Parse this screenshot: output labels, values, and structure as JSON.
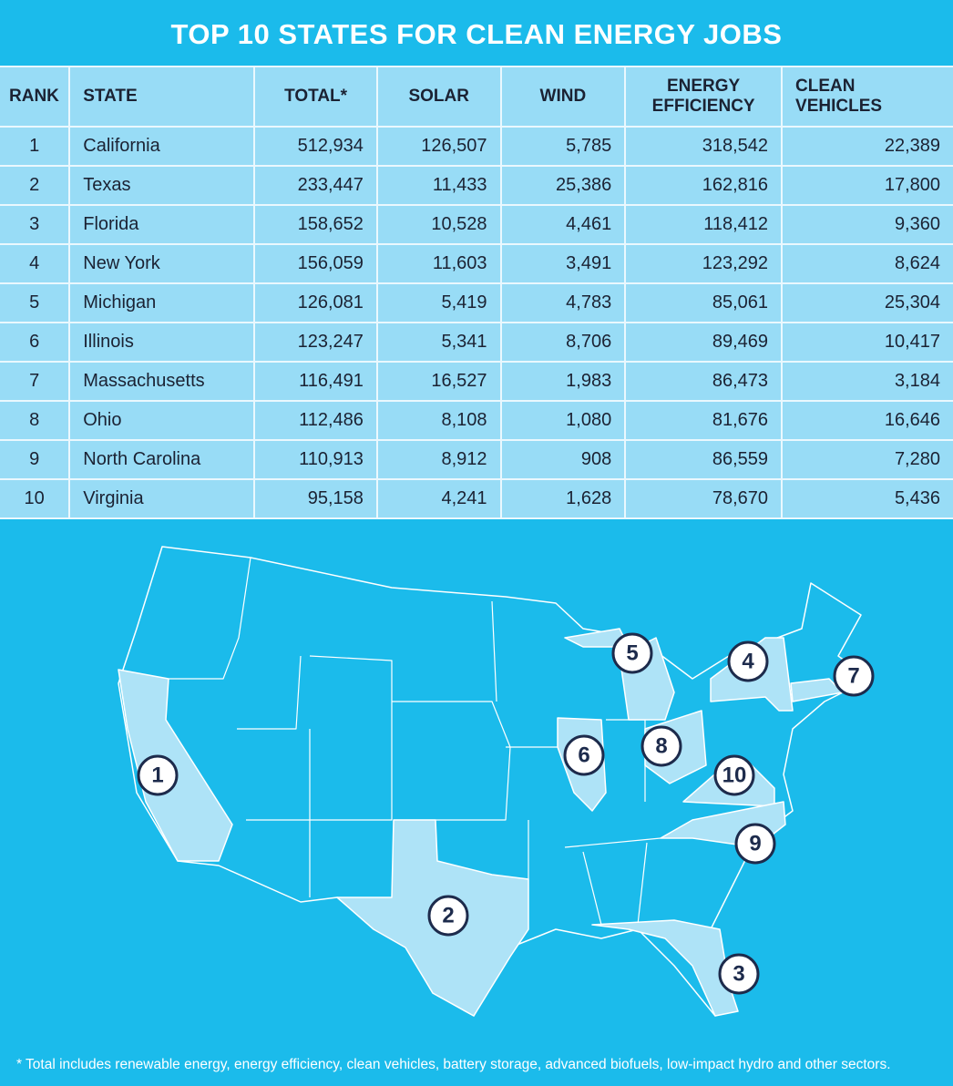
{
  "header": {
    "title": "TOP 10 STATES FOR CLEAN ENERGY JOBS"
  },
  "table": {
    "headers": [
      "RANK",
      "STATE",
      "TOTAL*",
      "SOLAR",
      "WIND",
      "ENERGY EFFICIENCY",
      "CLEAN VEHICLES"
    ],
    "rows": [
      [
        "1",
        "California",
        "512,934",
        "126,507",
        "5,785",
        "318,542",
        "22,389"
      ],
      [
        "2",
        "Texas",
        "233,447",
        "11,433",
        "25,386",
        "162,816",
        "17,800"
      ],
      [
        "3",
        "Florida",
        "158,652",
        "10,528",
        "4,461",
        "118,412",
        "9,360"
      ],
      [
        "4",
        "New York",
        "156,059",
        "11,603",
        "3,491",
        "123,292",
        "8,624"
      ],
      [
        "5",
        "Michigan",
        "126,081",
        "5,419",
        "4,783",
        "85,061",
        "25,304"
      ],
      [
        "6",
        "Illinois",
        "123,247",
        "5,341",
        "8,706",
        "89,469",
        "10,417"
      ],
      [
        "7",
        "Massachusetts",
        "116,491",
        "16,527",
        "1,983",
        "86,473",
        "3,184"
      ],
      [
        "8",
        "Ohio",
        "112,486",
        "8,108",
        "1,080",
        "81,676",
        "16,646"
      ],
      [
        "9",
        "North Carolina",
        "110,913",
        "8,912",
        "908",
        "86,559",
        "7,280"
      ],
      [
        "10",
        "Virginia",
        "95,158",
        "4,241",
        "1,628",
        "78,670",
        "5,436"
      ]
    ]
  },
  "map": {
    "markers": [
      {
        "label": "1"
      },
      {
        "label": "2"
      },
      {
        "label": "3"
      },
      {
        "label": "4"
      },
      {
        "label": "5"
      },
      {
        "label": "6"
      },
      {
        "label": "7"
      },
      {
        "label": "8"
      },
      {
        "label": "9"
      },
      {
        "label": "10"
      }
    ]
  },
  "footnote": "* Total includes renewable energy, energy efficiency, clean vehicles, battery storage, advanced biofuels, low-impact hydro and other sectors."
}
